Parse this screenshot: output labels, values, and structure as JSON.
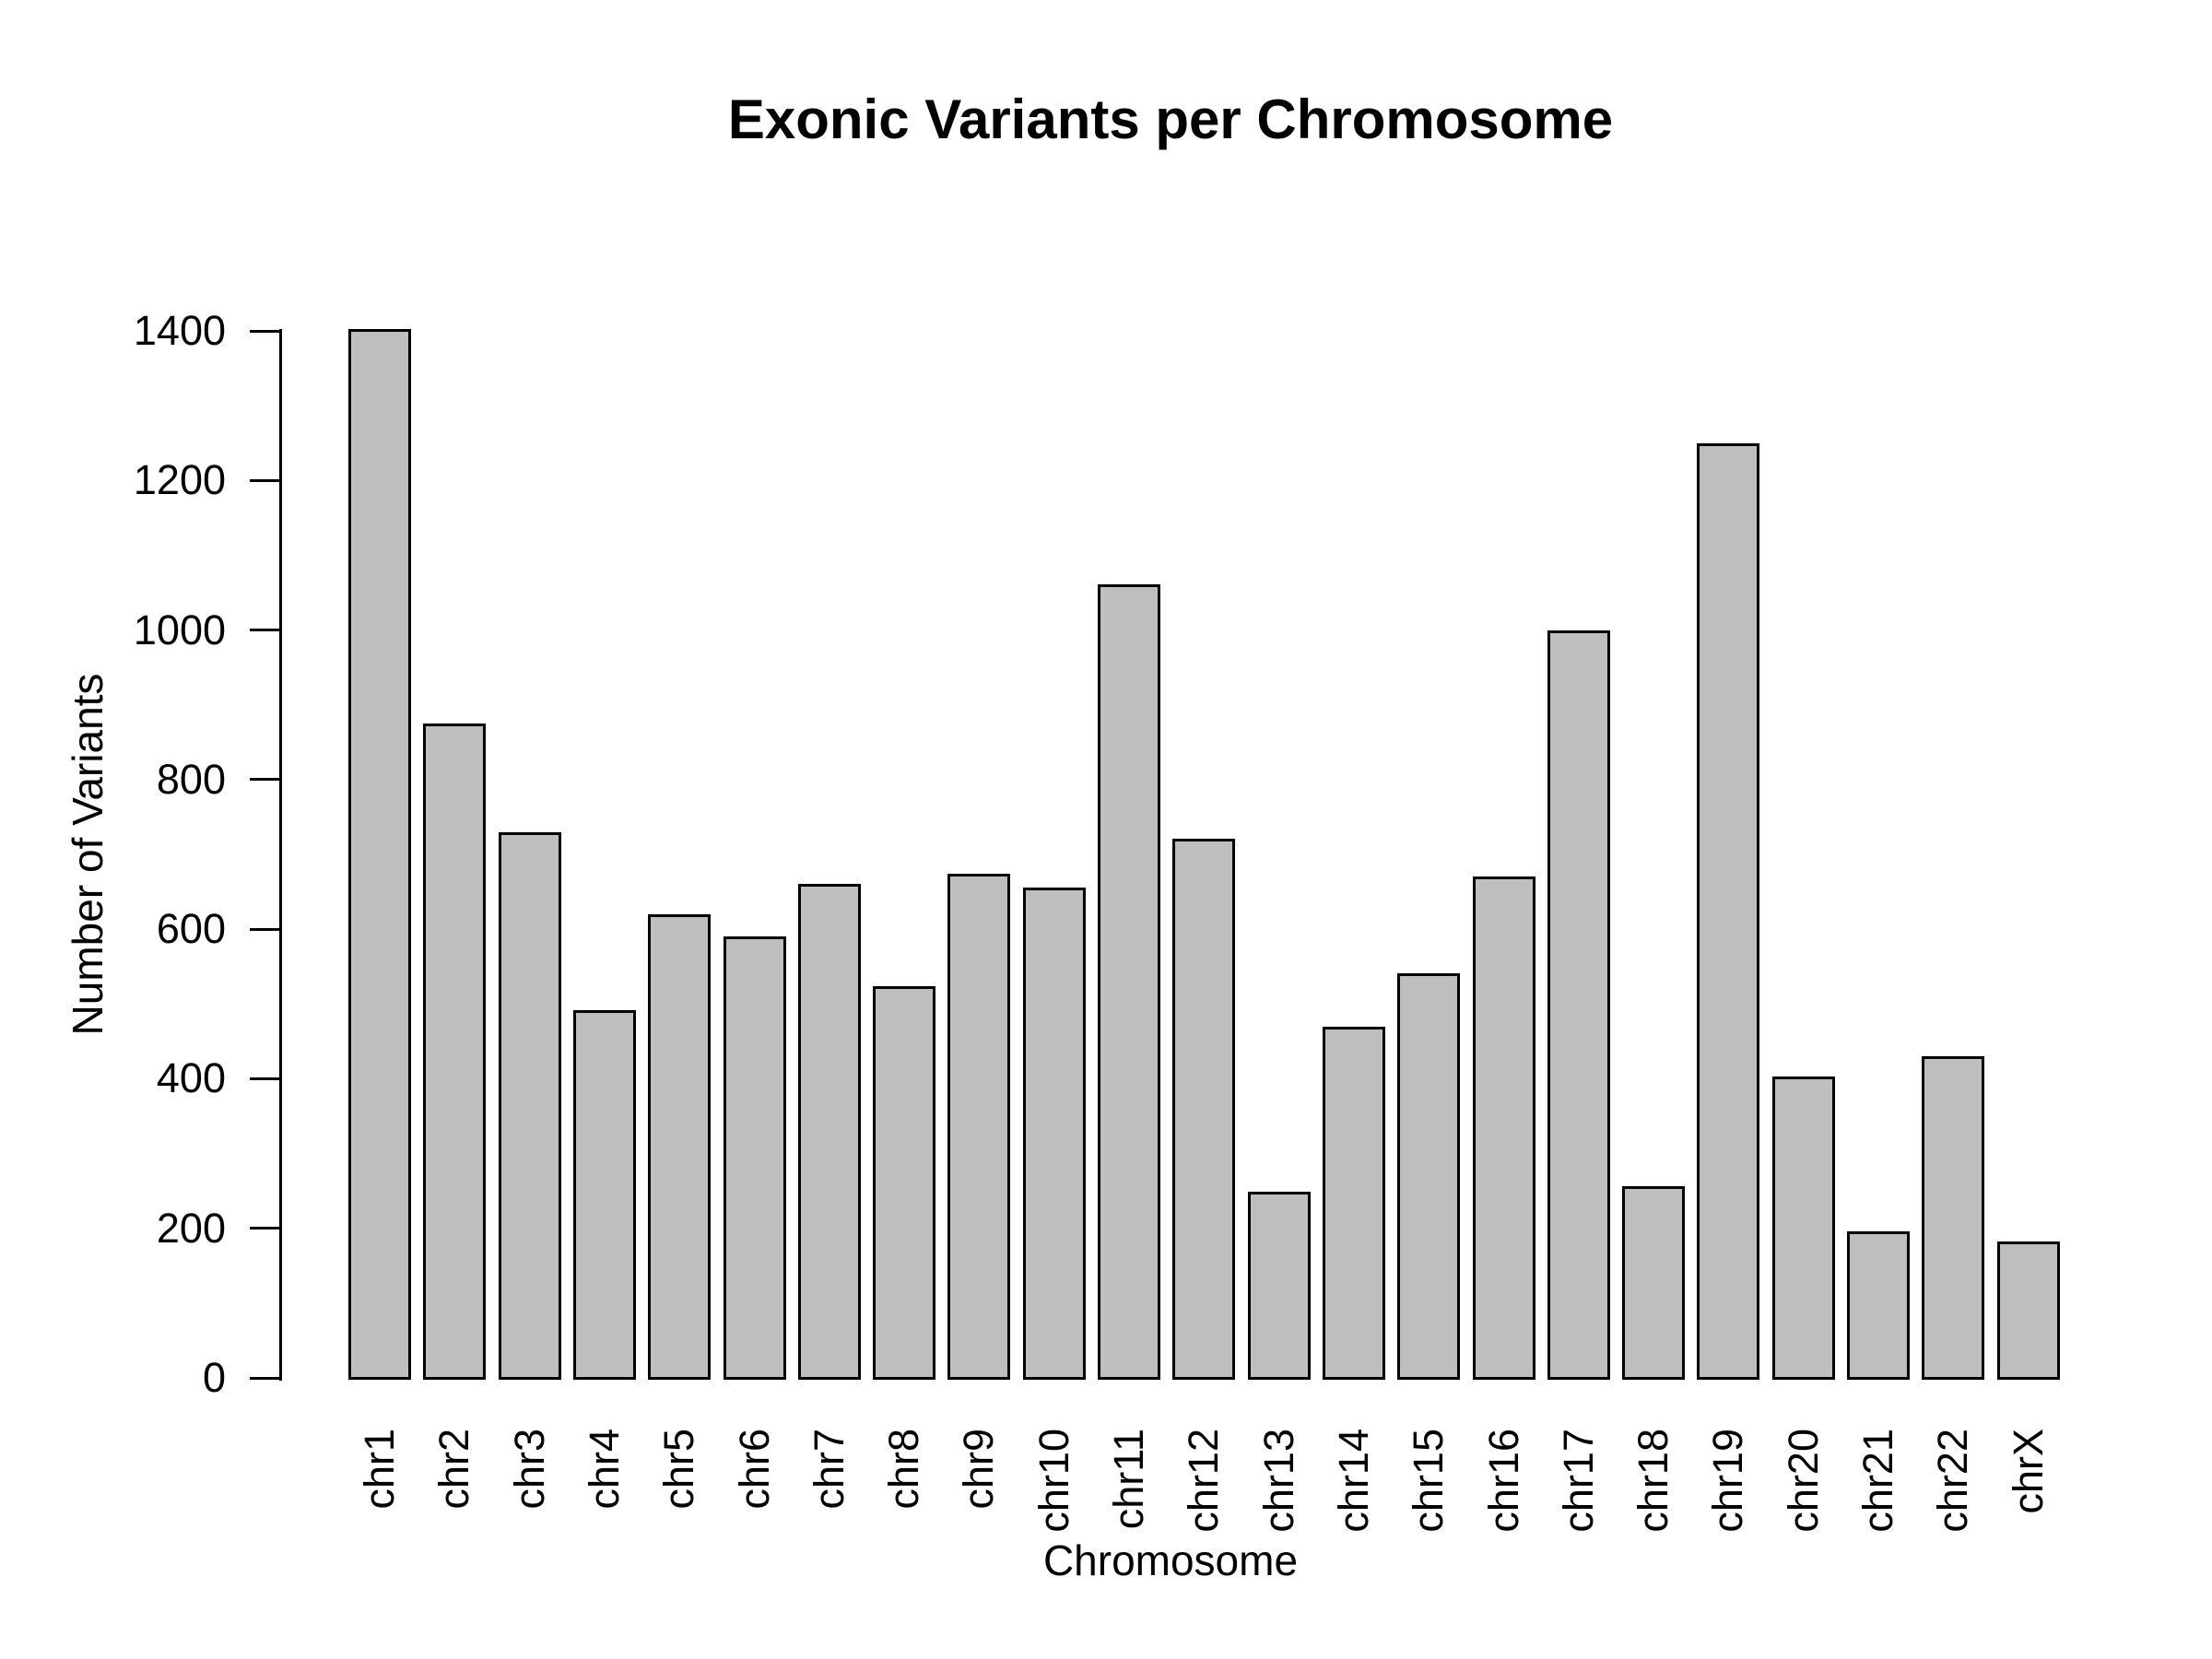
{
  "chart_data": {
    "type": "bar",
    "title": "Exonic Variants per Chromosome",
    "xlabel": "Chromosome",
    "ylabel": "Number of Variants",
    "categories": [
      "chr1",
      "chr2",
      "chr3",
      "chr4",
      "chr5",
      "chr6",
      "chr7",
      "chr8",
      "chr9",
      "chr10",
      "chr11",
      "chr12",
      "chr13",
      "chr14",
      "chr15",
      "chr16",
      "chr17",
      "chr18",
      "chr19",
      "chr20",
      "chr21",
      "chr22",
      "chrX"
    ],
    "values": [
      1400,
      873,
      727,
      489,
      618,
      588,
      658,
      521,
      672,
      653,
      1059,
      718,
      246,
      467,
      539,
      668,
      997,
      254,
      1247,
      401,
      194,
      428,
      180
    ],
    "ylim": [
      0,
      1400
    ],
    "yticks": [
      0,
      200,
      400,
      600,
      800,
      1000,
      1200,
      1400
    ],
    "grid": false,
    "legend": null,
    "bar_fill_color": "#bebebe",
    "bar_border_color": "#000000",
    "axis_color": "#000000",
    "text_color": "#000000",
    "background_color": "#ffffff",
    "x_label_rotation_degrees": 90
  }
}
